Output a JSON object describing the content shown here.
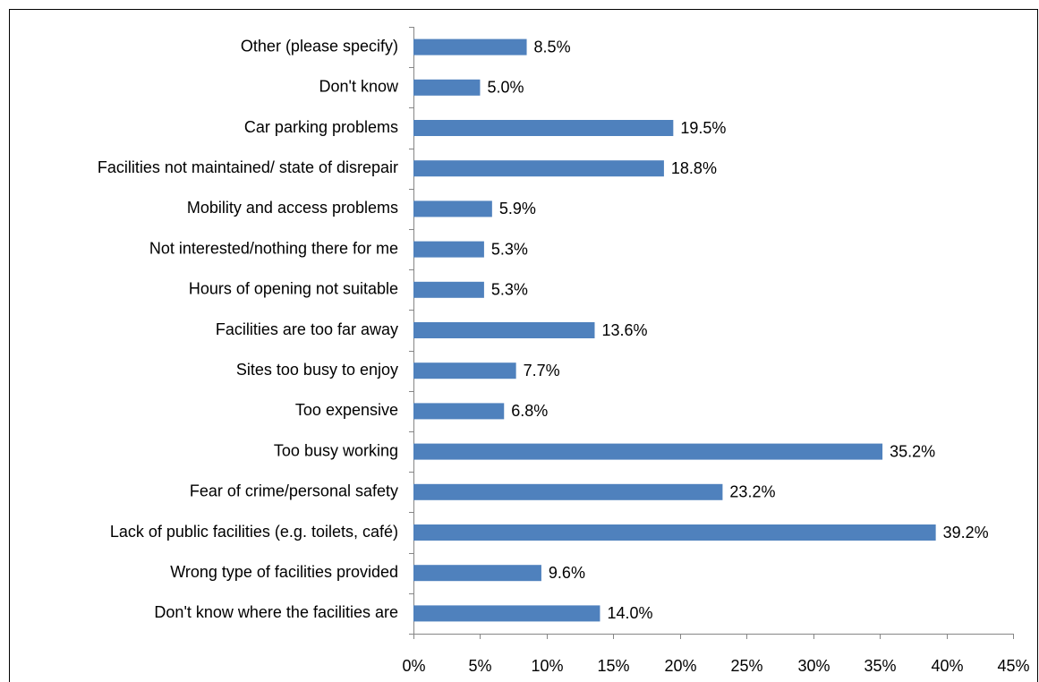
{
  "chart_data": {
    "type": "hbar",
    "categories": [
      "Other (please specify)",
      "Don't know",
      "Car parking problems",
      "Facilities not maintained/ state of disrepair",
      "Mobility and access problems",
      "Not interested/nothing there for me",
      "Hours of opening not suitable",
      "Facilities are too far away",
      "Sites too busy to enjoy",
      "Too expensive",
      "Too busy working",
      "Fear of crime/personal safety",
      "Lack of public facilities (e.g. toilets, café)",
      "Wrong type of facilities provided",
      "Don't know where the facilities are"
    ],
    "values": [
      8.5,
      5.0,
      19.5,
      18.8,
      5.9,
      5.3,
      5.3,
      13.6,
      7.7,
      6.8,
      35.2,
      23.2,
      39.2,
      9.6,
      14.0
    ],
    "value_labels": [
      "8.5%",
      "5.0%",
      "19.5%",
      "18.8%",
      "5.9%",
      "5.3%",
      "5.3%",
      "13.6%",
      "7.7%",
      "6.8%",
      "35.2%",
      "23.2%",
      "39.2%",
      "9.6%",
      "14.0%"
    ],
    "color": "#4f81bd",
    "xlim": [
      0,
      45
    ],
    "xticks": [
      {
        "value": 0,
        "label": "0%"
      },
      {
        "value": 5,
        "label": "5%"
      },
      {
        "value": 10,
        "label": "10%"
      },
      {
        "value": 15,
        "label": "15%"
      },
      {
        "value": 20,
        "label": "20%"
      },
      {
        "value": 25,
        "label": "25%"
      },
      {
        "value": 30,
        "label": "30%"
      },
      {
        "value": 35,
        "label": "35%"
      },
      {
        "value": 40,
        "label": "40%"
      },
      {
        "value": 45,
        "label": "45%"
      }
    ],
    "grid": false
  }
}
